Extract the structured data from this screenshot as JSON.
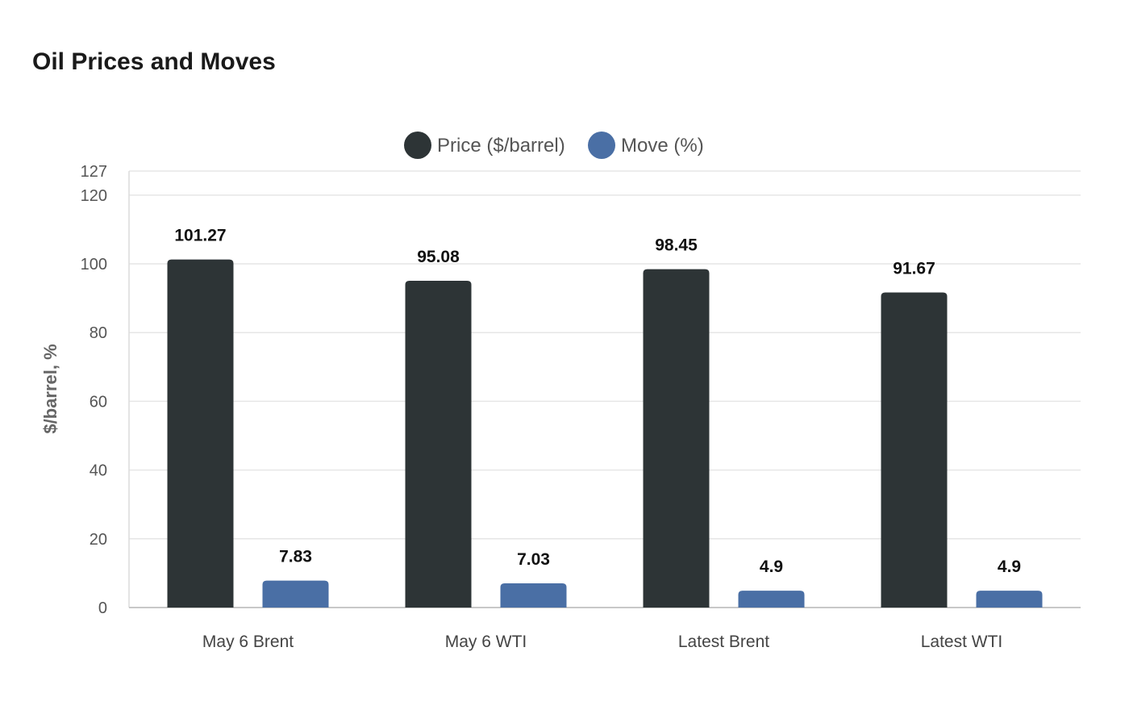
{
  "chart_data": {
    "type": "bar",
    "title": "Oil Prices and Moves",
    "xlabel": "",
    "ylabel": "$/barrel, %",
    "categories": [
      "May 6 Brent",
      "May 6 WTI",
      "Latest Brent",
      "Latest WTI"
    ],
    "series": [
      {
        "name": "Price ($/barrel)",
        "color": "#2d3436",
        "values": [
          101.27,
          95.08,
          98.45,
          91.67
        ]
      },
      {
        "name": "Move (%)",
        "color": "#4a6fa5",
        "values": [
          7.83,
          7.03,
          4.9,
          4.9
        ]
      }
    ],
    "ylim": [
      0,
      127
    ],
    "yticks": [
      0,
      20,
      40,
      60,
      80,
      100,
      120,
      127
    ],
    "grid": true,
    "legend": "top-center"
  }
}
